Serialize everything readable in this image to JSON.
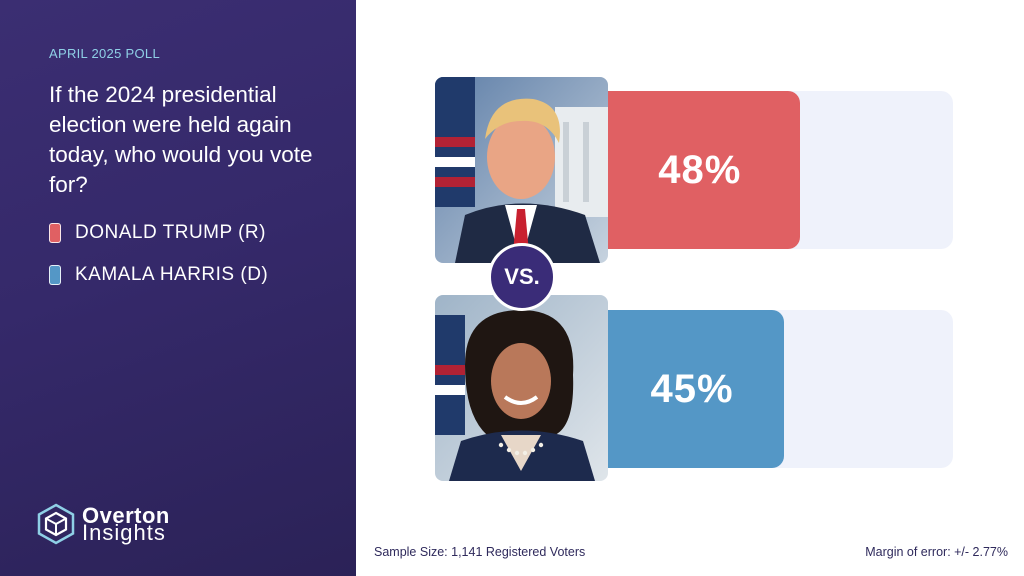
{
  "header": {
    "eyebrow": "APRIL 2025 POLL",
    "question": "If the 2024 presidential election were held again today, who would you vote for?"
  },
  "legend": [
    {
      "label": "DONALD TRUMP (R)",
      "color": "#e06063"
    },
    {
      "label": "KAMALA HARRIS (D)",
      "color": "#5497c6"
    }
  ],
  "vs_label": "VS.",
  "chart_data": {
    "type": "bar",
    "orientation": "horizontal",
    "categories": [
      "DONALD TRUMP (R)",
      "KAMALA HARRIS (D)"
    ],
    "values": [
      48,
      45
    ],
    "value_labels": [
      "48%",
      "45%"
    ],
    "colors": [
      "#e06063",
      "#5497c6"
    ],
    "track_color": "#eff2fb",
    "xlim": [
      0,
      100
    ],
    "title": "",
    "xlabel": "",
    "ylabel": ""
  },
  "footer": {
    "sample_size": "Sample Size: 1,141 Registered Voters",
    "margin_of_error": "Margin of error: +/- 2.77%"
  },
  "logo": {
    "line1": "Overton",
    "line2": "Insights"
  }
}
